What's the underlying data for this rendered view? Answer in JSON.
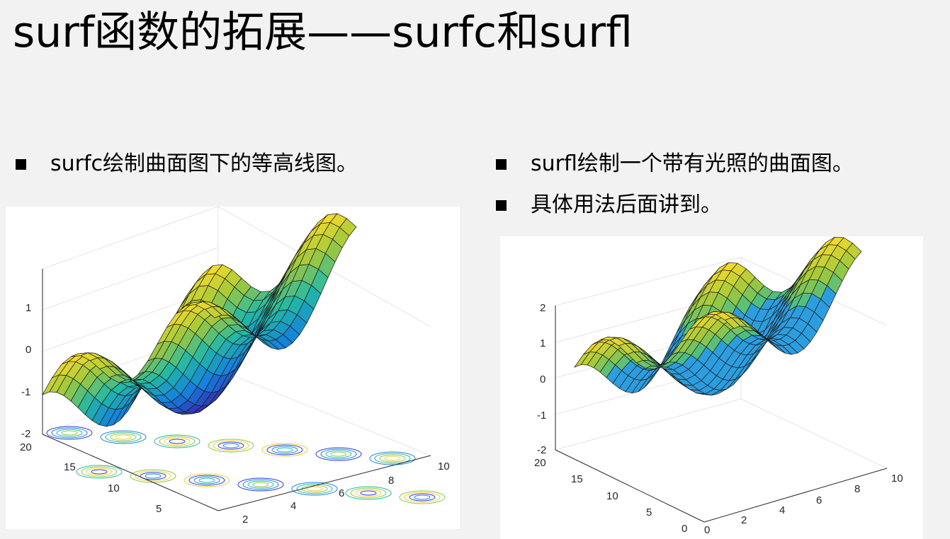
{
  "slide": {
    "title": "surf函数的拓展——surfc和surfl",
    "left_bullets": [
      "surfc绘制曲面图下的等高线图。"
    ],
    "right_bullets": [
      "surfl绘制一个带有光照的曲面图。",
      "具体用法后面讲到。"
    ]
  },
  "figures": {
    "surfc": {
      "z_ticks": [
        "1",
        "0",
        "-1",
        "-2"
      ],
      "y_ticks": [
        "20",
        "15",
        "10",
        "5"
      ],
      "x_ticks": [
        "2",
        "4",
        "6",
        "8",
        "10"
      ]
    },
    "surfl": {
      "z_ticks": [
        "2",
        "1",
        "0",
        "-1",
        "-2"
      ],
      "y_ticks": [
        "20",
        "15",
        "10",
        "5",
        "0"
      ],
      "x_ticks": [
        "0",
        "2",
        "4",
        "6",
        "8",
        "10"
      ]
    }
  },
  "colors": {
    "background": "#f2f2f2",
    "figure_background": "#ffffff",
    "surface_peak": "#f9c833",
    "surface_mid": "#22b9a8",
    "surface_low": "#3a4ad8",
    "surfl_blue": "#2c9ee0"
  }
}
